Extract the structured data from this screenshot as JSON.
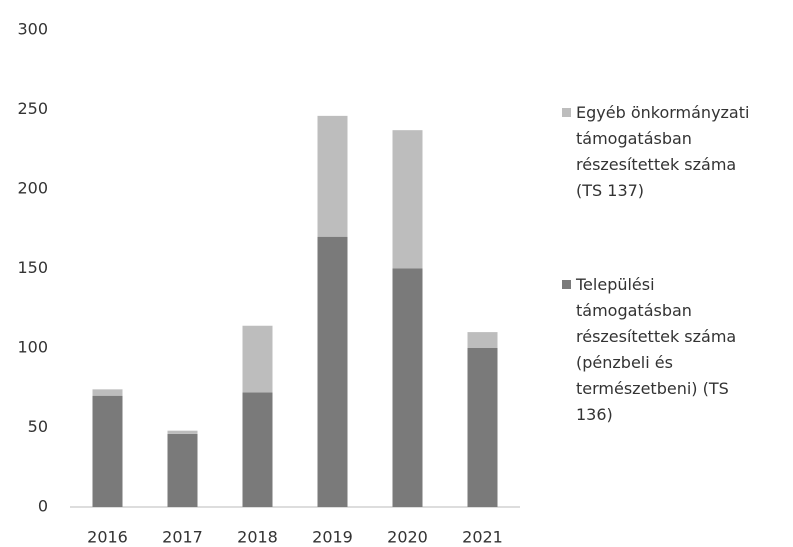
{
  "chart_data": {
    "type": "stacked_bar",
    "categories": [
      "2016",
      "2017",
      "2018",
      "2019",
      "2020",
      "2021"
    ],
    "series": [
      {
        "name": "Települési támogatásban részesítettek száma (pénzbeli és természetbeni) (TS 136)",
        "color": "#7a7a7a",
        "values": [
          70,
          46,
          72,
          170,
          150,
          100
        ]
      },
      {
        "name": "Egyéb önkormányzati támogatásban részesítettek száma (TS 137)",
        "color": "#bdbdbd",
        "values": [
          4,
          2,
          42,
          76,
          87,
          10
        ]
      }
    ],
    "ylim": [
      0,
      300
    ],
    "yticks": [
      0,
      50,
      100,
      150,
      200,
      250,
      300
    ],
    "grid": false
  }
}
